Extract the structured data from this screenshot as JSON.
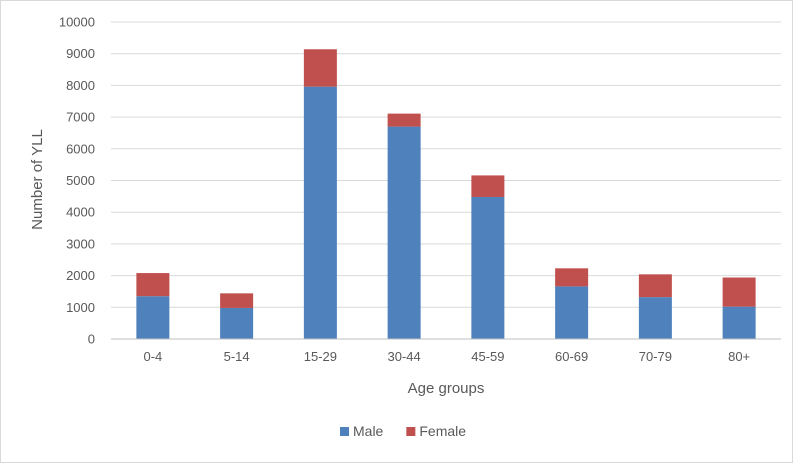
{
  "chart_data": {
    "type": "bar",
    "stacked": true,
    "title": "",
    "xlabel": "Age groups",
    "ylabel": "Number of YLL",
    "ylim": [
      0,
      10000
    ],
    "yticks": [
      "0",
      "1000",
      "2000",
      "3000",
      "4000",
      "5000",
      "6000",
      "7000",
      "8000",
      "9000",
      "10000"
    ],
    "categories": [
      "0-4",
      "5-14",
      "15-29",
      "30-44",
      "45-59",
      "60-69",
      "70-79",
      "80+"
    ],
    "series": [
      {
        "name": "Male",
        "color": "#4f81bd",
        "values": [
          1350,
          980,
          7960,
          6700,
          4480,
          1660,
          1320,
          1020
        ]
      },
      {
        "name": "Female",
        "color": "#c0504d",
        "values": [
          730,
          460,
          1180,
          410,
          680,
          570,
          720,
          920
        ]
      }
    ],
    "legend": "bottom",
    "grid": true
  }
}
